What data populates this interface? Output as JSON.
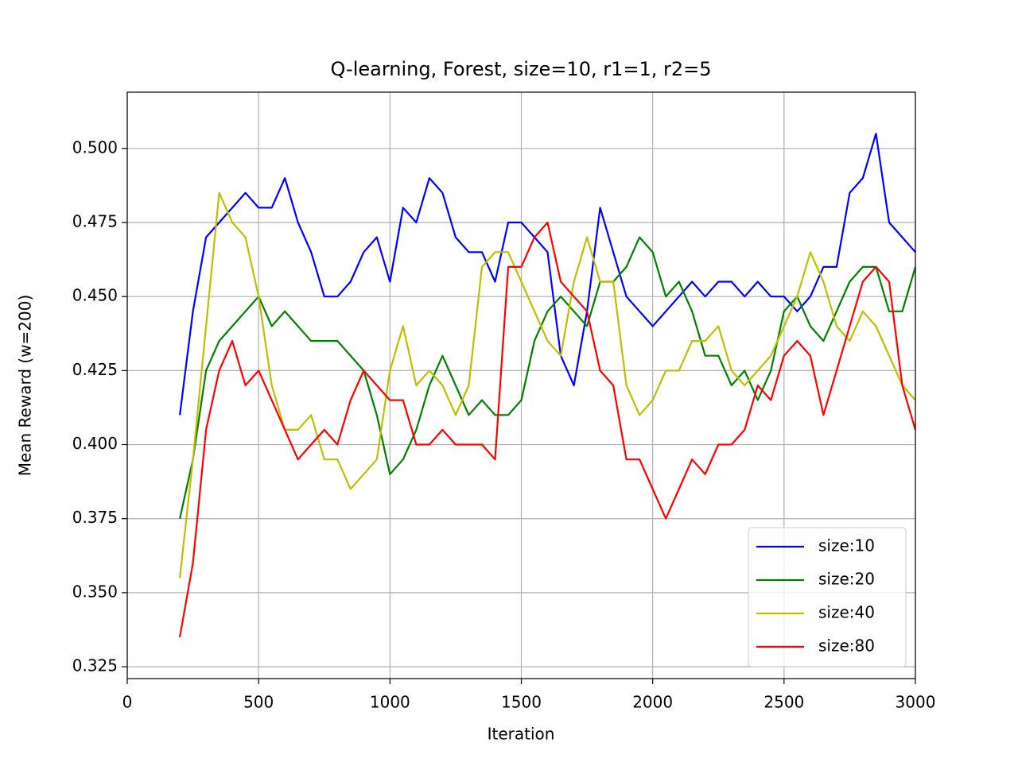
{
  "chart_data": {
    "type": "line",
    "title": "Q-learning, Forest, size=10, r1=1, r2=5",
    "x_label": "Iteration",
    "y_label": "Mean Reward (w=200)",
    "x": [
      200,
      250,
      300,
      350,
      400,
      450,
      500,
      550,
      600,
      650,
      700,
      750,
      800,
      850,
      900,
      950,
      1000,
      1050,
      1100,
      1150,
      1200,
      1250,
      1300,
      1350,
      1400,
      1450,
      1500,
      1550,
      1600,
      1650,
      1700,
      1750,
      1800,
      1850,
      1900,
      1950,
      2000,
      2050,
      2100,
      2150,
      2200,
      2250,
      2300,
      2350,
      2400,
      2450,
      2500,
      2550,
      2600,
      2650,
      2700,
      2750,
      2800,
      2850,
      2900,
      2950,
      3000
    ],
    "series": [
      {
        "name": "size:10",
        "color": "#0000ff",
        "values": [
          0.41,
          0.445,
          0.47,
          0.475,
          0.48,
          0.485,
          0.48,
          0.48,
          0.49,
          0.475,
          0.465,
          0.45,
          0.45,
          0.455,
          0.465,
          0.47,
          0.455,
          0.48,
          0.475,
          0.49,
          0.485,
          0.47,
          0.465,
          0.465,
          0.455,
          0.475,
          0.475,
          0.47,
          0.465,
          0.43,
          0.42,
          0.445,
          0.48,
          0.465,
          0.45,
          0.445,
          0.44,
          0.445,
          0.45,
          0.455,
          0.45,
          0.455,
          0.455,
          0.45,
          0.455,
          0.45,
          0.45,
          0.445,
          0.45,
          0.46,
          0.46,
          0.485,
          0.49,
          0.505,
          0.475,
          0.47,
          0.465
        ]
      },
      {
        "name": "size:20",
        "color": "#008000",
        "values": [
          0.375,
          0.395,
          0.425,
          0.435,
          0.44,
          0.445,
          0.45,
          0.44,
          0.445,
          0.44,
          0.435,
          0.435,
          0.435,
          0.43,
          0.425,
          0.41,
          0.39,
          0.395,
          0.405,
          0.42,
          0.43,
          0.42,
          0.41,
          0.415,
          0.41,
          0.41,
          0.415,
          0.435,
          0.445,
          0.45,
          0.445,
          0.44,
          0.455,
          0.455,
          0.46,
          0.47,
          0.465,
          0.45,
          0.455,
          0.445,
          0.43,
          0.43,
          0.42,
          0.425,
          0.415,
          0.425,
          0.445,
          0.45,
          0.44,
          0.435,
          0.445,
          0.455,
          0.46,
          0.46,
          0.445,
          0.445,
          0.46
        ]
      },
      {
        "name": "size:40",
        "color": "#bfbf00",
        "values": [
          0.355,
          0.395,
          0.44,
          0.485,
          0.475,
          0.47,
          0.45,
          0.42,
          0.405,
          0.405,
          0.41,
          0.395,
          0.395,
          0.385,
          0.39,
          0.395,
          0.425,
          0.44,
          0.42,
          0.425,
          0.42,
          0.41,
          0.42,
          0.46,
          0.465,
          0.465,
          0.455,
          0.445,
          0.435,
          0.43,
          0.455,
          0.47,
          0.455,
          0.455,
          0.42,
          0.41,
          0.415,
          0.425,
          0.425,
          0.435,
          0.435,
          0.44,
          0.425,
          0.42,
          0.425,
          0.43,
          0.44,
          0.45,
          0.465,
          0.455,
          0.44,
          0.435,
          0.445,
          0.44,
          0.43,
          0.42,
          0.415
        ]
      },
      {
        "name": "size:80",
        "color": "#ff0000",
        "values": [
          0.335,
          0.36,
          0.405,
          0.425,
          0.435,
          0.42,
          0.425,
          0.415,
          0.405,
          0.395,
          0.4,
          0.405,
          0.4,
          0.415,
          0.425,
          0.42,
          0.415,
          0.415,
          0.4,
          0.4,
          0.405,
          0.4,
          0.4,
          0.4,
          0.395,
          0.46,
          0.46,
          0.47,
          0.475,
          0.455,
          0.45,
          0.445,
          0.425,
          0.42,
          0.395,
          0.395,
          0.385,
          0.375,
          0.385,
          0.395,
          0.39,
          0.4,
          0.4,
          0.405,
          0.42,
          0.415,
          0.43,
          0.435,
          0.43,
          0.41,
          0.425,
          0.44,
          0.455,
          0.46,
          0.455,
          0.42,
          0.405
        ]
      }
    ],
    "xlim": [
      0,
      3000
    ],
    "ylim": [
      0.321,
      0.519
    ],
    "xticks": [
      0,
      500,
      1000,
      1500,
      2000,
      2500,
      3000
    ],
    "yticks": [
      0.325,
      {
        "value": 0.35,
        "label": "0.350"
      },
      0.375,
      {
        "value": 0.4,
        "label": "0.400"
      },
      0.425,
      {
        "value": 0.45,
        "label": "0.450"
      },
      0.475,
      {
        "value": 0.5,
        "label": "0.500"
      }
    ],
    "grid": true,
    "legend": "lower right"
  }
}
